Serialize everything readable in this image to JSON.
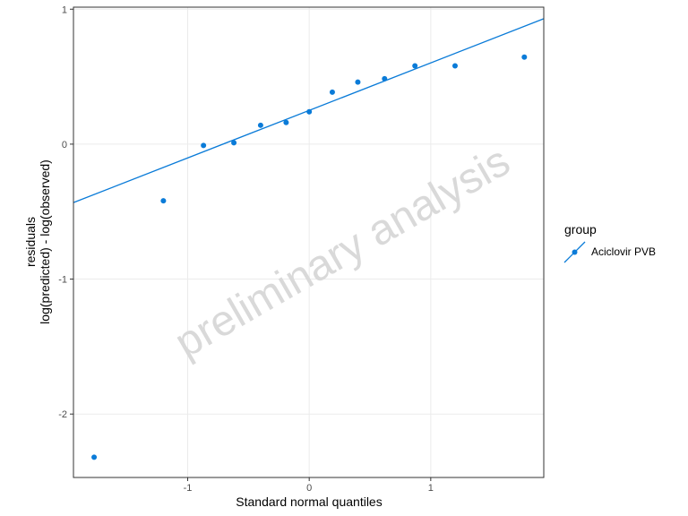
{
  "chart_data": {
    "type": "scatter",
    "xlabel": "Standard normal quantiles",
    "ylabel_lines": [
      "residuals",
      "log(predicted) - log(observed)"
    ],
    "xlim": [
      -1.94,
      1.93
    ],
    "ylim": [
      -2.47,
      1.015
    ],
    "x_ticks": [
      -1,
      0,
      1
    ],
    "y_ticks": [
      -2,
      -1,
      0,
      1
    ],
    "x_tick_labels": [
      "-1",
      "0",
      "1"
    ],
    "y_tick_labels": [
      "-2",
      "-1",
      "0",
      "1"
    ],
    "grid": true,
    "watermark": "preliminary analysis",
    "color": "#0A7BD8",
    "legend": {
      "title": "group",
      "position": "right",
      "entries": [
        "Aciclovir PVB"
      ]
    },
    "series": [
      {
        "name": "Aciclovir PVB",
        "x": [
          -1.77,
          -1.2,
          -0.87,
          -0.62,
          -0.4,
          -0.19,
          0.0,
          0.19,
          0.4,
          0.62,
          0.87,
          1.2,
          1.77
        ],
        "y": [
          -2.32,
          -0.42,
          -0.01,
          0.01,
          0.14,
          0.16,
          0.24,
          0.385,
          0.46,
          0.485,
          0.58,
          0.58,
          0.645
        ]
      }
    ],
    "reference_line": {
      "intercept": 0.25,
      "slope": 0.352
    }
  }
}
